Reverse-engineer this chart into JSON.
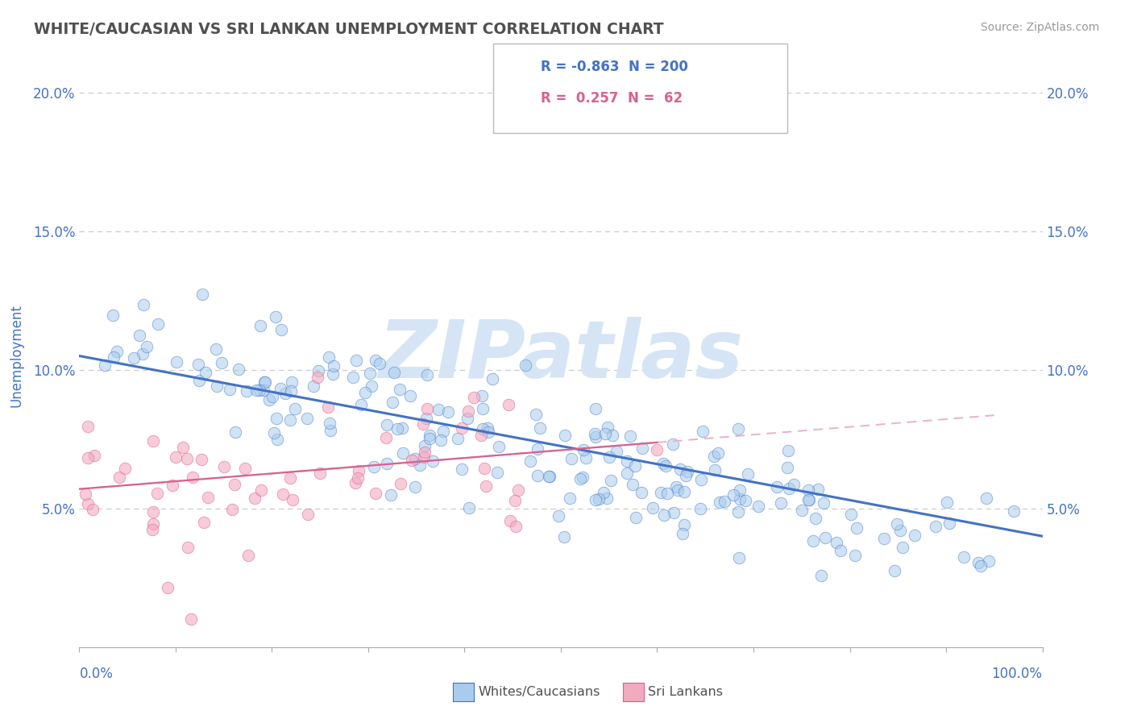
{
  "title": "WHITE/CAUCASIAN VS SRI LANKAN UNEMPLOYMENT CORRELATION CHART",
  "source": "Source: ZipAtlas.com",
  "ylabel": "Unemployment",
  "watermark_text": "ZIPatlas",
  "xlim": [
    0.0,
    1.0
  ],
  "ylim": [
    0.0,
    0.21
  ],
  "yticks": [
    0.05,
    0.1,
    0.15,
    0.2
  ],
  "ytick_labels": [
    "5.0%",
    "10.0%",
    "15.0%",
    "20.0%"
  ],
  "blue_fill": "#A8CCEE",
  "blue_edge": "#4472C4",
  "pink_fill": "#F2AABF",
  "pink_edge": "#D96090",
  "blue_line": "#4472C4",
  "pink_line": "#D96090",
  "pink_dash": "#EBB0C8",
  "grid_color": "#CCCCCC",
  "axis_color": "#4472C4",
  "title_color": "#505050",
  "watermark_color": "#D5E5F5",
  "r_blue": -0.863,
  "n_blue": 200,
  "r_pink": 0.257,
  "n_pink": 62,
  "blue_intercept": 0.105,
  "blue_slope": -0.065,
  "pink_intercept": 0.057,
  "pink_slope": 0.028
}
